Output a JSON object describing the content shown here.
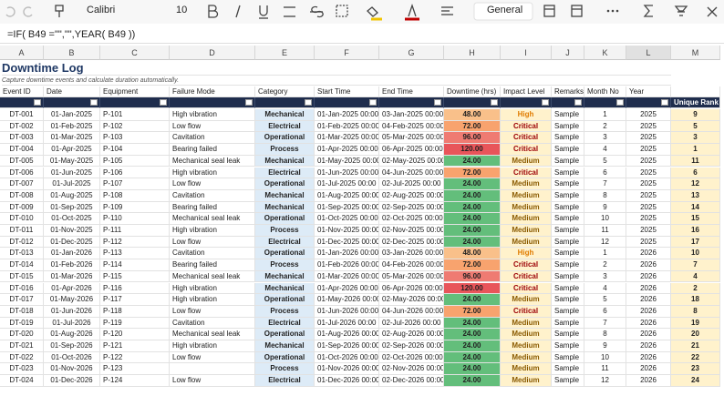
{
  "toolbar": {
    "font": "Calibri",
    "size": "10",
    "format": "General"
  },
  "formula_bar": {
    "formula": "=IF( B49 =\"\",\"\",YEAR( B49 ))"
  },
  "column_letters": [
    "A",
    "B",
    "C",
    "D",
    "E",
    "F",
    "G",
    "H",
    "I",
    "J",
    "K",
    "L",
    "M"
  ],
  "sheet": {
    "title": "Downtime Log",
    "subtitle": "Capture downtime events and calculate duration automatically.",
    "headers": [
      "Event ID",
      "Date",
      "Equipment",
      "Failure Mode",
      "Category",
      "Start Time",
      "End Time",
      "Downtime (hrs)",
      "Impact Level",
      "Remarks",
      "Month No",
      "Year"
    ],
    "extra_header": "Unique Rank",
    "rows": [
      [
        "DT-001",
        "01-Jan-2025",
        "P-101",
        "High vibration",
        "Mechanical",
        "01-Jan-2025 00:00",
        "03-Jan-2025 00:00",
        "48.00",
        "High",
        "Sample",
        1,
        2025,
        9
      ],
      [
        "DT-002",
        "01-Feb-2025",
        "P-102",
        "Low flow",
        "Electrical",
        "01-Feb-2025 00:00",
        "04-Feb-2025 00:00",
        "72.00",
        "Critical",
        "Sample",
        2,
        2025,
        5
      ],
      [
        "DT-003",
        "01-Mar-2025",
        "P-103",
        "Cavitation",
        "Operational",
        "01-Mar-2025 00:00",
        "05-Mar-2025 00:00",
        "96.00",
        "Critical",
        "Sample",
        3,
        2025,
        3
      ],
      [
        "DT-004",
        "01-Apr-2025",
        "P-104",
        "Bearing failed",
        "Process",
        "01-Apr-2025 00:00",
        "06-Apr-2025 00:00",
        "120.00",
        "Critical",
        "Sample",
        4,
        2025,
        1
      ],
      [
        "DT-005",
        "01-May-2025",
        "P-105",
        "Mechanical seal leak",
        "Mechanical",
        "01-May-2025 00:00",
        "02-May-2025 00:00",
        "24.00",
        "Medium",
        "Sample",
        5,
        2025,
        11
      ],
      [
        "DT-006",
        "01-Jun-2025",
        "P-106",
        "High vibration",
        "Electrical",
        "01-Jun-2025 00:00",
        "04-Jun-2025 00:00",
        "72.00",
        "Critical",
        "Sample",
        6,
        2025,
        6
      ],
      [
        "DT-007",
        "01-Jul-2025",
        "P-107",
        "Low flow",
        "Operational",
        "01-Jul-2025 00:00",
        "02-Jul-2025 00:00",
        "24.00",
        "Medium",
        "Sample",
        7,
        2025,
        12
      ],
      [
        "DT-008",
        "01-Aug-2025",
        "P-108",
        "Cavitation",
        "Mechanical",
        "01-Aug-2025 00:00",
        "02-Aug-2025 00:00",
        "24.00",
        "Medium",
        "Sample",
        8,
        2025,
        13
      ],
      [
        "DT-009",
        "01-Sep-2025",
        "P-109",
        "Bearing failed",
        "Mechanical",
        "01-Sep-2025 00:00",
        "02-Sep-2025 00:00",
        "24.00",
        "Medium",
        "Sample",
        9,
        2025,
        14
      ],
      [
        "DT-010",
        "01-Oct-2025",
        "P-110",
        "Mechanical seal leak",
        "Operational",
        "01-Oct-2025 00:00",
        "02-Oct-2025 00:00",
        "24.00",
        "Medium",
        "Sample",
        10,
        2025,
        15
      ],
      [
        "DT-011",
        "01-Nov-2025",
        "P-111",
        "High vibration",
        "Process",
        "01-Nov-2025 00:00",
        "02-Nov-2025 00:00",
        "24.00",
        "Medium",
        "Sample",
        11,
        2025,
        16
      ],
      [
        "DT-012",
        "01-Dec-2025",
        "P-112",
        "Low flow",
        "Electrical",
        "01-Dec-2025 00:00",
        "02-Dec-2025 00:00",
        "24.00",
        "Medium",
        "Sample",
        12,
        2025,
        17
      ],
      [
        "DT-013",
        "01-Jan-2026",
        "P-113",
        "Cavitation",
        "Operational",
        "01-Jan-2026 00:00",
        "03-Jan-2026 00:00",
        "48.00",
        "High",
        "Sample",
        1,
        2026,
        10
      ],
      [
        "DT-014",
        "01-Feb-2026",
        "P-114",
        "Bearing failed",
        "Process",
        "01-Feb-2026 00:00",
        "04-Feb-2026 00:00",
        "72.00",
        "Critical",
        "Sample",
        2,
        2026,
        7
      ],
      [
        "DT-015",
        "01-Mar-2026",
        "P-115",
        "Mechanical seal leak",
        "Mechanical",
        "01-Mar-2026 00:00",
        "05-Mar-2026 00:00",
        "96.00",
        "Critical",
        "Sample",
        3,
        2026,
        4
      ],
      [
        "DT-016",
        "01-Apr-2026",
        "P-116",
        "High vibration",
        "Mechanical",
        "01-Apr-2026 00:00",
        "06-Apr-2026 00:00",
        "120.00",
        "Critical",
        "Sample",
        4,
        2026,
        2
      ],
      [
        "DT-017",
        "01-May-2026",
        "P-117",
        "High vibration",
        "Operational",
        "01-May-2026 00:00",
        "02-May-2026 00:00",
        "24.00",
        "Medium",
        "Sample",
        5,
        2026,
        18
      ],
      [
        "DT-018",
        "01-Jun-2026",
        "P-118",
        "Low flow",
        "Process",
        "01-Jun-2026 00:00",
        "04-Jun-2026 00:00",
        "72.00",
        "Critical",
        "Sample",
        6,
        2026,
        8
      ],
      [
        "DT-019",
        "01-Jul-2026",
        "P-119",
        "Cavitation",
        "Electrical",
        "01-Jul-2026 00:00",
        "02-Jul-2026 00:00",
        "24.00",
        "Medium",
        "Sample",
        7,
        2026,
        19
      ],
      [
        "DT-020",
        "01-Aug-2026",
        "P-120",
        "Mechanical seal leak",
        "Operational",
        "01-Aug-2026 00:00",
        "02-Aug-2026 00:00",
        "24.00",
        "Medium",
        "Sample",
        8,
        2026,
        20
      ],
      [
        "DT-021",
        "01-Sep-2026",
        "P-121",
        "High vibration",
        "Mechanical",
        "01-Sep-2026 00:00",
        "02-Sep-2026 00:00",
        "24.00",
        "Medium",
        "Sample",
        9,
        2026,
        21
      ],
      [
        "DT-022",
        "01-Oct-2026",
        "P-122",
        "Low flow",
        "Operational",
        "01-Oct-2026 00:00",
        "02-Oct-2026 00:00",
        "24.00",
        "Medium",
        "Sample",
        10,
        2026,
        22
      ],
      [
        "DT-023",
        "01-Nov-2026",
        "P-123",
        null,
        "Process",
        "01-Nov-2026 00:00",
        "02-Nov-2026 00:00",
        "24.00",
        "Medium",
        "Sample",
        11,
        2026,
        23
      ],
      [
        "DT-024",
        "01-Dec-2026",
        "P-124",
        "Low flow",
        "Electrical",
        "01-Dec-2026 00:00",
        "02-Dec-2026 00:00",
        "24.00",
        "Medium",
        "Sample",
        12,
        2026,
        24
      ]
    ]
  }
}
